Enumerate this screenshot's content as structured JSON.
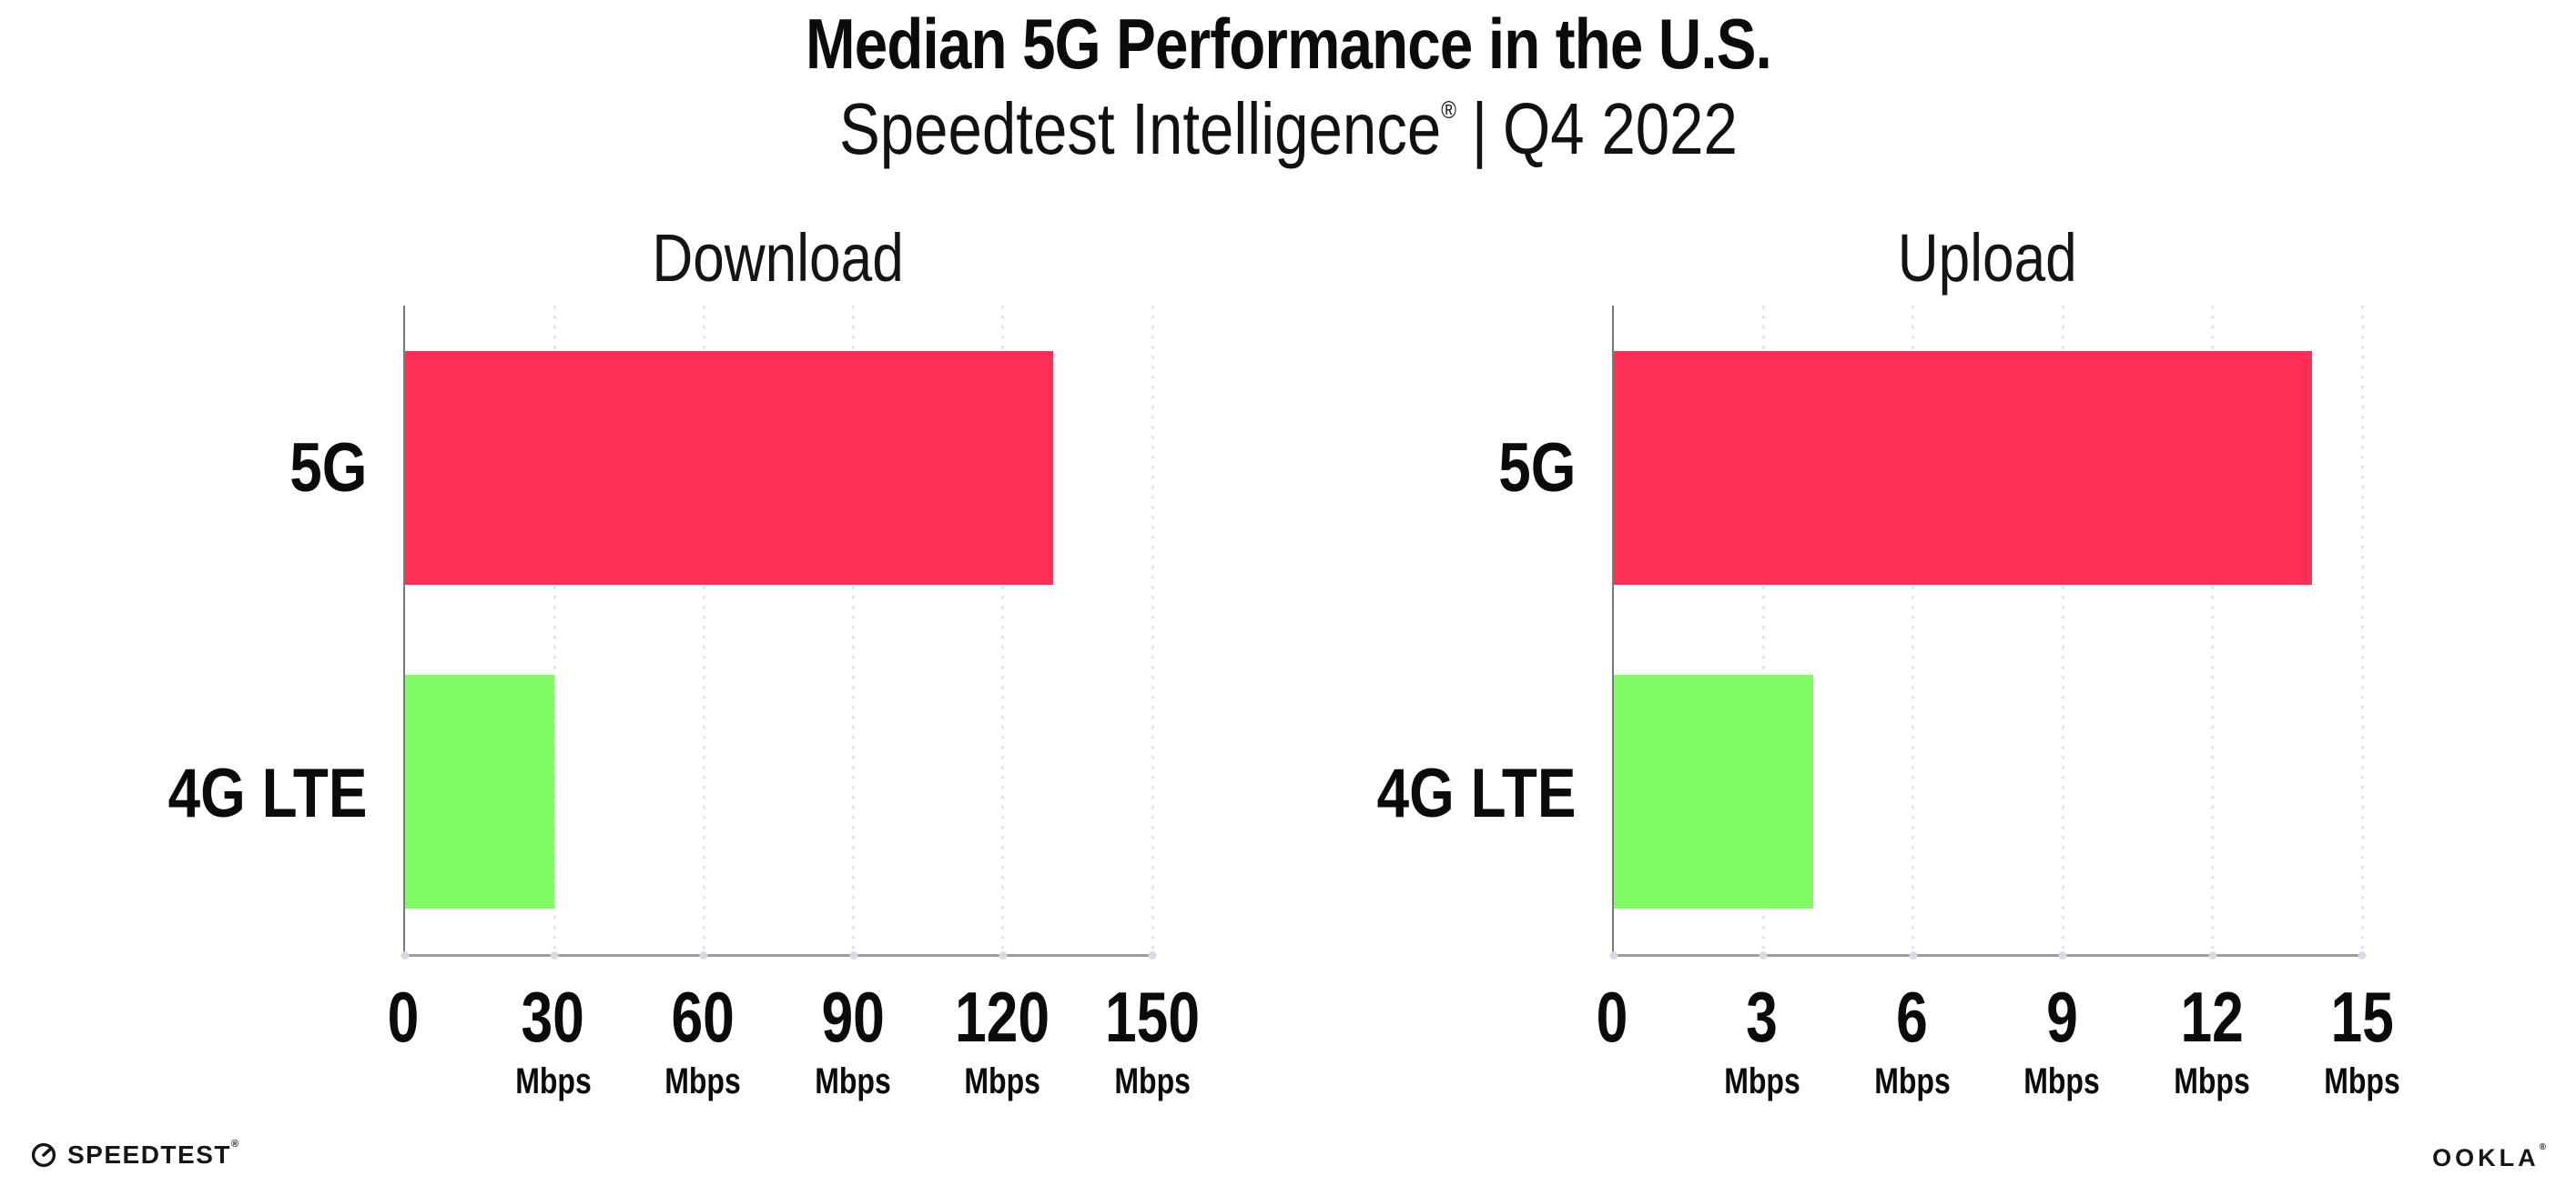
{
  "header": {
    "title": "Median 5G Performance in the U.S.",
    "subtitle_product": "Speedtest Intelligence",
    "subtitle_reg": "®",
    "subtitle_separator": "|",
    "subtitle_period": "Q4 2022"
  },
  "footer": {
    "speedtest_label": "SPEEDTEST",
    "speedtest_mark": "®",
    "ookla_label": "OOKLA",
    "ookla_mark": "®"
  },
  "colors": {
    "bar_5g": "#ff2e57",
    "bar_4g_lte": "#80fb63",
    "gridline": "#e4e4ee",
    "x_axis": "#9b9ba2",
    "y_axis": "#77777e",
    "text": "#0b0b0b"
  },
  "chart_data": [
    {
      "type": "bar",
      "orientation": "horizontal",
      "title": "Download",
      "categories": [
        "5G",
        "4G LTE"
      ],
      "values": [
        130,
        30
      ],
      "unit": "Mbps",
      "xlim": [
        0,
        150
      ],
      "xticks": [
        0,
        30,
        60,
        90,
        120,
        150
      ],
      "tick_unit": "Mbps",
      "bar_colors": [
        "#ff2e57",
        "#80fb63"
      ],
      "grid": "vertical-dotted",
      "legend": "none"
    },
    {
      "type": "bar",
      "orientation": "horizontal",
      "title": "Upload",
      "categories": [
        "5G",
        "4G LTE"
      ],
      "values": [
        14,
        4
      ],
      "unit": "Mbps",
      "xlim": [
        0,
        15
      ],
      "xticks": [
        0,
        3,
        6,
        9,
        12,
        15
      ],
      "tick_unit": "Mbps",
      "bar_colors": [
        "#ff2e57",
        "#80fb63"
      ],
      "grid": "vertical-dotted",
      "legend": "none"
    }
  ]
}
